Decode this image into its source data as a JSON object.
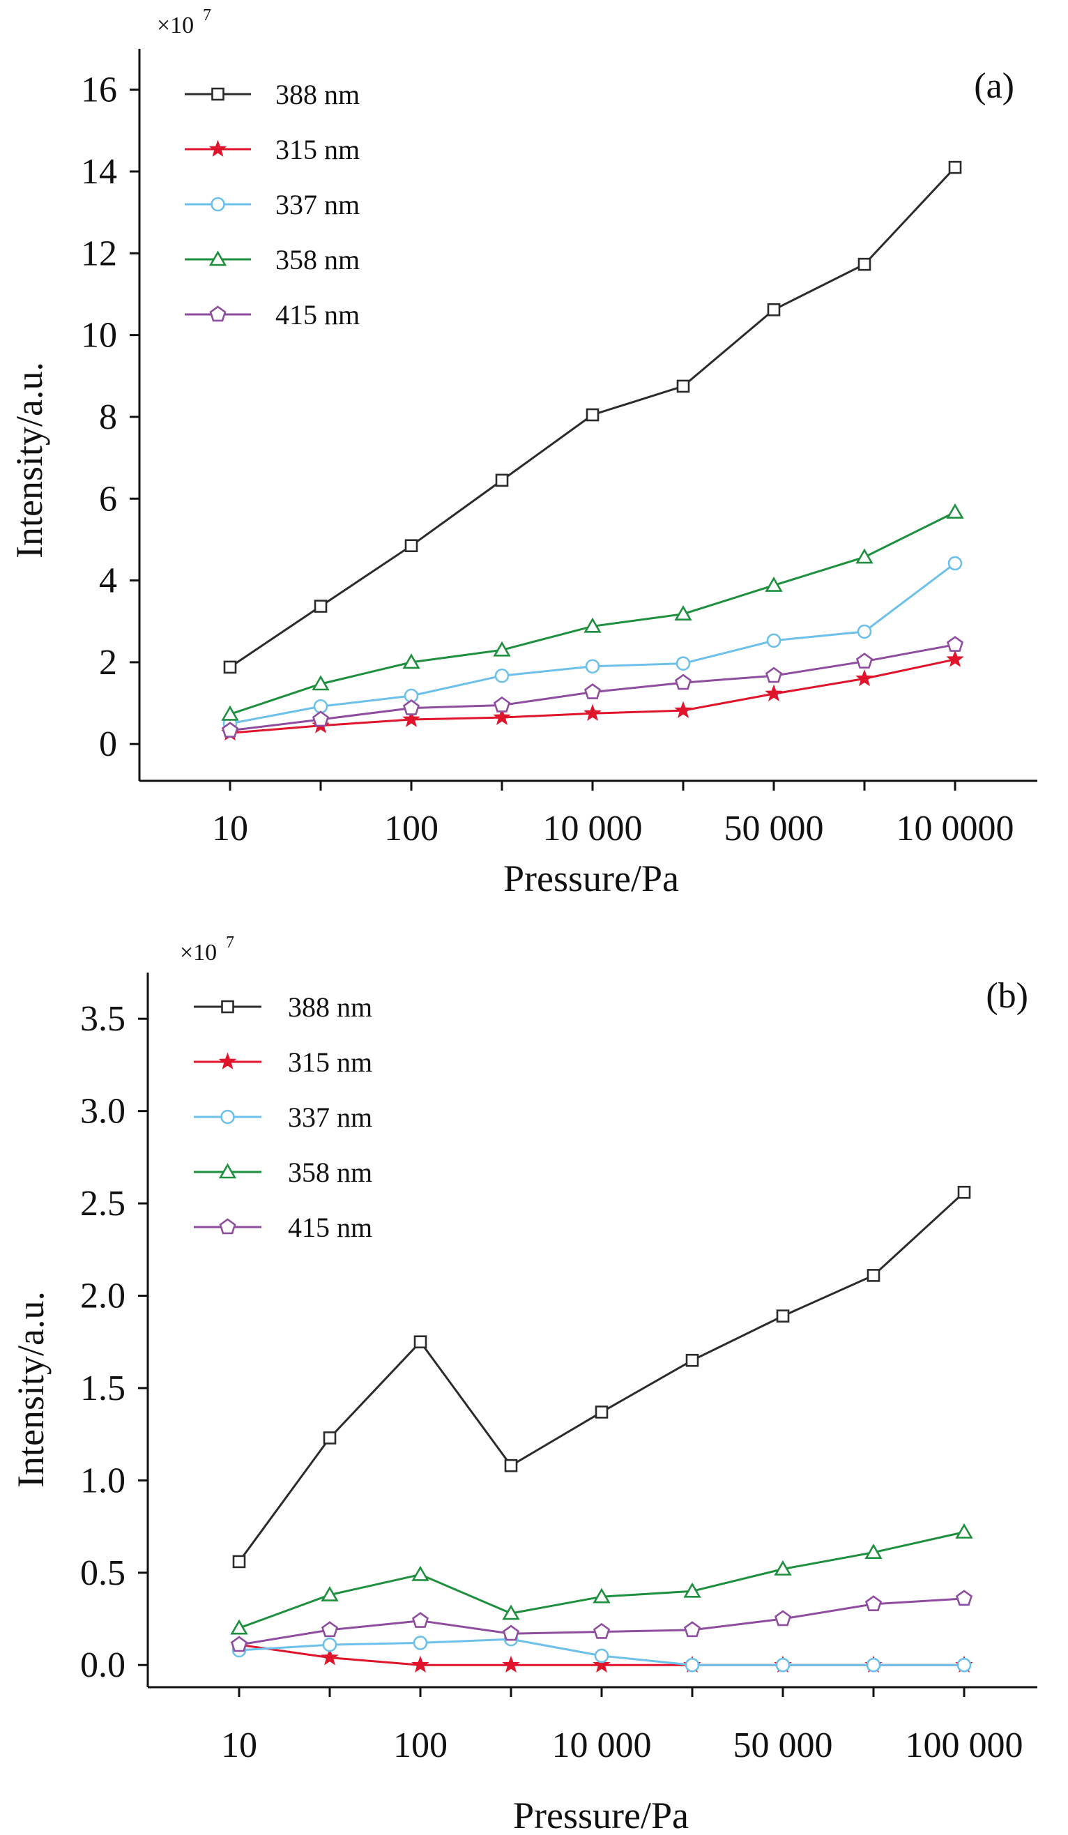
{
  "chart_data": [
    {
      "type": "line",
      "panel_label": "(a)",
      "multiplier_label": "×10",
      "multiplier_exponent": "7",
      "xlabel": "Pressure/Pa",
      "ylabel": "Intensity/a.u.",
      "x_tick_labels": [
        "10",
        "100",
        "10 000",
        "50 000",
        "10 0000"
      ],
      "y_ticks": [
        "0",
        "2",
        "4",
        "6",
        "8",
        "10",
        "12",
        "14",
        "16"
      ],
      "ylim": [
        -0.9,
        17
      ],
      "point_count": 9,
      "legend_position": "top-left",
      "grid": false,
      "series": [
        {
          "name": "388 nm",
          "marker": "square",
          "color": "#2b2b2b",
          "values": [
            1.88,
            3.37,
            4.85,
            6.45,
            8.05,
            8.75,
            10.62,
            11.73,
            14.1
          ]
        },
        {
          "name": "315 nm",
          "marker": "star",
          "color": "#e0142b",
          "values": [
            0.27,
            0.45,
            0.6,
            0.65,
            0.75,
            0.82,
            1.23,
            1.6,
            2.07
          ]
        },
        {
          "name": "337 nm",
          "marker": "circle",
          "color": "#6cc0ea",
          "values": [
            0.5,
            0.92,
            1.18,
            1.67,
            1.9,
            1.97,
            2.53,
            2.75,
            4.42
          ]
        },
        {
          "name": "358 nm",
          "marker": "triangle",
          "color": "#1e8f3e",
          "values": [
            0.73,
            1.47,
            2.0,
            2.3,
            2.88,
            3.18,
            3.88,
            4.57,
            5.67
          ]
        },
        {
          "name": "415 nm",
          "marker": "pentagon",
          "color": "#8e4d9e",
          "values": [
            0.33,
            0.6,
            0.88,
            0.95,
            1.27,
            1.5,
            1.67,
            2.02,
            2.43
          ]
        }
      ]
    },
    {
      "type": "line",
      "panel_label": "(b)",
      "multiplier_label": "×10",
      "multiplier_exponent": "7",
      "xlabel": "Pressure/Pa",
      "ylabel": "Intensity/a.u.",
      "x_tick_labels": [
        "10",
        "100",
        "10 000",
        "50 000",
        "100 000"
      ],
      "y_ticks": [
        "0.0",
        "0.5",
        "1.0",
        "1.5",
        "2.0",
        "2.5",
        "3.0",
        "3.5"
      ],
      "ylim": [
        -0.12,
        3.75
      ],
      "point_count": 9,
      "legend_position": "top-left",
      "grid": false,
      "series": [
        {
          "name": "388 nm",
          "marker": "square",
          "color": "#2b2b2b",
          "values": [
            0.56,
            1.23,
            1.75,
            1.08,
            1.37,
            1.65,
            1.89,
            2.11,
            2.56
          ]
        },
        {
          "name": "315 nm",
          "marker": "star",
          "color": "#e0142b",
          "values": [
            0.11,
            0.04,
            0.0,
            0.0,
            0.0,
            0.0,
            0.0,
            0.0,
            0.0
          ]
        },
        {
          "name": "337 nm",
          "marker": "circle",
          "color": "#6cc0ea",
          "values": [
            0.08,
            0.11,
            0.12,
            0.14,
            0.05,
            0.0,
            0.0,
            0.0,
            0.0
          ]
        },
        {
          "name": "358 nm",
          "marker": "triangle",
          "color": "#1e8f3e",
          "values": [
            0.2,
            0.38,
            0.49,
            0.28,
            0.37,
            0.4,
            0.52,
            0.61,
            0.72
          ]
        },
        {
          "name": "415 nm",
          "marker": "pentagon",
          "color": "#8e4d9e",
          "values": [
            0.11,
            0.19,
            0.24,
            0.17,
            0.18,
            0.19,
            0.25,
            0.33,
            0.36
          ]
        }
      ]
    }
  ]
}
